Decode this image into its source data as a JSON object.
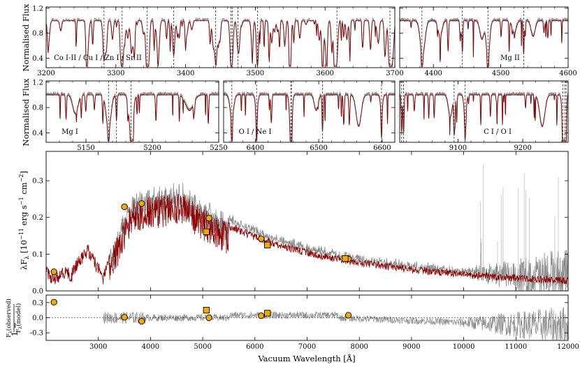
{
  "chart_data": [
    {
      "id": "top_left",
      "type": "line",
      "ylabel": "Normalised Flux",
      "xlim": [
        3200,
        3700
      ],
      "ylim": [
        0.25,
        1.22
      ],
      "xticks": [
        3200,
        3300,
        3400,
        3500,
        3600,
        3700
      ],
      "yticks": [
        0.4,
        0.8,
        1.2
      ],
      "annotation": "Co I-II / Cu I / Zn I / Sr II",
      "line_positions": [
        3283,
        3309,
        3345,
        3383,
        3443,
        3465,
        3467,
        3475,
        3503,
        3617,
        3693
      ],
      "observed_color": "#888888",
      "model_color": "#8b0000"
    },
    {
      "id": "top_right",
      "type": "line",
      "xlim": [
        4350,
        4600
      ],
      "ylim": [
        0.25,
        1.22
      ],
      "xticks": [
        4400,
        4500,
        4600
      ],
      "annotation": "Mg II",
      "line_positions": [
        4383,
        4443,
        4481,
        4534
      ],
      "observed_color": "#888888",
      "model_color": "#8b0000"
    },
    {
      "id": "mid1",
      "type": "line",
      "ylabel": "Normalised Flux",
      "xlim": [
        5120,
        5250
      ],
      "ylim": [
        0.25,
        1.22
      ],
      "xticks": [
        5150,
        5200,
        5250
      ],
      "yticks": [
        0.4,
        0.8,
        1.2
      ],
      "annotation": "Mg I",
      "line_positions": [
        5167,
        5173,
        5184
      ],
      "observed_color": "#888888",
      "model_color": "#8b0000"
    },
    {
      "id": "mid2",
      "type": "line",
      "xlim": [
        6350,
        6620
      ],
      "ylim": [
        0.25,
        1.22
      ],
      "xticks": [
        6400,
        6500,
        6600
      ],
      "annotation": "O I / Ne I",
      "line_positions": [
        6363,
        6402,
        6456,
        6457,
        6506,
        6599
      ],
      "observed_color": "#888888",
      "model_color": "#8b0000"
    },
    {
      "id": "mid3",
      "type": "line",
      "xlim": [
        9010,
        9270
      ],
      "ylim": [
        0.25,
        1.22
      ],
      "xticks": [
        9100,
        9200
      ],
      "annotation": "C I / O I",
      "line_positions": [
        9013,
        9016,
        9094,
        9111,
        9262,
        9265,
        9267
      ],
      "observed_color": "#888888",
      "model_color": "#8b0000"
    },
    {
      "id": "sed",
      "type": "line",
      "ylabel": "λF_λ [10^−11 erg s^−1 cm^−2]",
      "xlim": [
        2000,
        12000
      ],
      "ylim": [
        0.0,
        0.38
      ],
      "yticks": [
        0.0,
        0.1,
        0.2,
        0.3
      ],
      "observed_color": "#888888",
      "model_color": "#8b0000",
      "photometry_circles": [
        {
          "x": 2150,
          "y": 0.052
        },
        {
          "x": 3500,
          "y": 0.229
        },
        {
          "x": 3830,
          "y": 0.238
        },
        {
          "x": 5120,
          "y": 0.198
        },
        {
          "x": 6120,
          "y": 0.142
        },
        {
          "x": 7790,
          "y": 0.087
        }
      ],
      "photometry_squares": [
        {
          "x": 5070,
          "y": 0.161
        },
        {
          "x": 6240,
          "y": 0.125
        },
        {
          "x": 7730,
          "y": 0.088
        }
      ],
      "marker_color": "#f5a800"
    },
    {
      "id": "residual",
      "type": "scatter",
      "ylabel": "1 − F_λ(observed) / F_λ(model)",
      "xlabel": "Vacuum Wavelength [Å]",
      "xlim": [
        2000,
        12000
      ],
      "ylim": [
        -0.45,
        0.45
      ],
      "yticks": [
        -0.3,
        0.0,
        0.3
      ],
      "xticks": [
        3000,
        4000,
        5000,
        6000,
        7000,
        8000,
        9000,
        10000,
        11000,
        12000
      ],
      "photometry_circles": [
        {
          "x": 2150,
          "y": 0.31
        },
        {
          "x": 3500,
          "y": 0.01
        },
        {
          "x": 3830,
          "y": -0.07
        },
        {
          "x": 5120,
          "y": 0.0
        },
        {
          "x": 6120,
          "y": 0.04
        },
        {
          "x": 7790,
          "y": 0.05
        }
      ],
      "photometry_squares": [
        {
          "x": 5070,
          "y": 0.15
        },
        {
          "x": 6240,
          "y": 0.09
        }
      ]
    }
  ],
  "labels": {
    "norm_flux_top": "Normalised Flux",
    "norm_flux_mid": "Normalised Flux",
    "sed_ylabel": "λF",
    "sed_ylabel_sub": "λ",
    "sed_ylabel_units": " [10",
    "sed_ylabel_exp": "−11",
    "sed_ylabel_units2": " erg s",
    "sed_ylabel_exp2": "−1",
    "sed_ylabel_units3": " cm",
    "sed_ylabel_exp3": "−2",
    "sed_ylabel_close": "]",
    "res_ylabel_prefix": "1 −",
    "res_num": "F",
    "res_num_sub": "λ",
    "res_num_rest": "(observed)",
    "res_den": "F",
    "res_den_sub": "λ",
    "res_den_rest": "(model)",
    "xlabel": "Vacuum Wavelength [Å]",
    "ann_top_left": "Co I-II / Cu I / Zn I / Sr II",
    "ann_top_right": "Mg II",
    "ann_mid1": "Mg I",
    "ann_mid2": "O I / Ne I",
    "ann_mid3": "C I / O I"
  }
}
